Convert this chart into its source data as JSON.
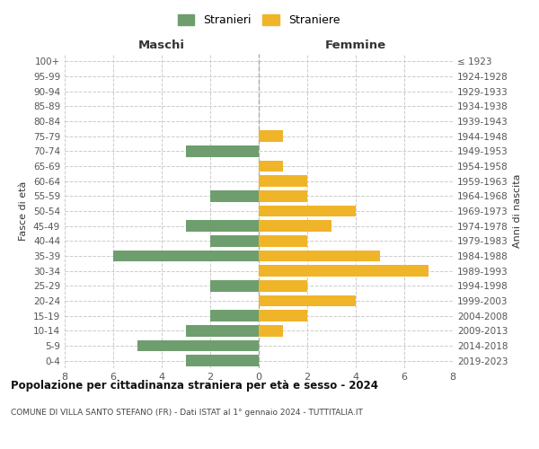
{
  "age_groups": [
    "0-4",
    "5-9",
    "10-14",
    "15-19",
    "20-24",
    "25-29",
    "30-34",
    "35-39",
    "40-44",
    "45-49",
    "50-54",
    "55-59",
    "60-64",
    "65-69",
    "70-74",
    "75-79",
    "80-84",
    "85-89",
    "90-94",
    "95-99",
    "100+"
  ],
  "birth_years": [
    "2019-2023",
    "2014-2018",
    "2009-2013",
    "2004-2008",
    "1999-2003",
    "1994-1998",
    "1989-1993",
    "1984-1988",
    "1979-1983",
    "1974-1978",
    "1969-1973",
    "1964-1968",
    "1959-1963",
    "1954-1958",
    "1949-1953",
    "1944-1948",
    "1939-1943",
    "1934-1938",
    "1929-1933",
    "1924-1928",
    "≤ 1923"
  ],
  "males": [
    3,
    5,
    3,
    2,
    0,
    2,
    0,
    6,
    2,
    3,
    0,
    2,
    0,
    0,
    3,
    0,
    0,
    0,
    0,
    0,
    0
  ],
  "females": [
    0,
    0,
    1,
    2,
    4,
    2,
    7,
    5,
    2,
    3,
    4,
    2,
    2,
    1,
    0,
    1,
    0,
    0,
    0,
    0,
    0
  ],
  "male_color": "#6e9e6e",
  "female_color": "#f0b429",
  "center_line_color": "#aaaaaa",
  "grid_color": "#cccccc",
  "background_color": "#ffffff",
  "title": "Popolazione per cittadinanza straniera per età e sesso - 2024",
  "subtitle": "COMUNE DI VILLA SANTO STEFANO (FR) - Dati ISTAT al 1° gennaio 2024 - TUTTITALIA.IT",
  "ylabel_left": "Fasce di età",
  "ylabel_right": "Anni di nascita",
  "xlabel_left": "Maschi",
  "xlabel_right": "Femmine",
  "legend_male": "Stranieri",
  "legend_female": "Straniere",
  "xlim": 8
}
